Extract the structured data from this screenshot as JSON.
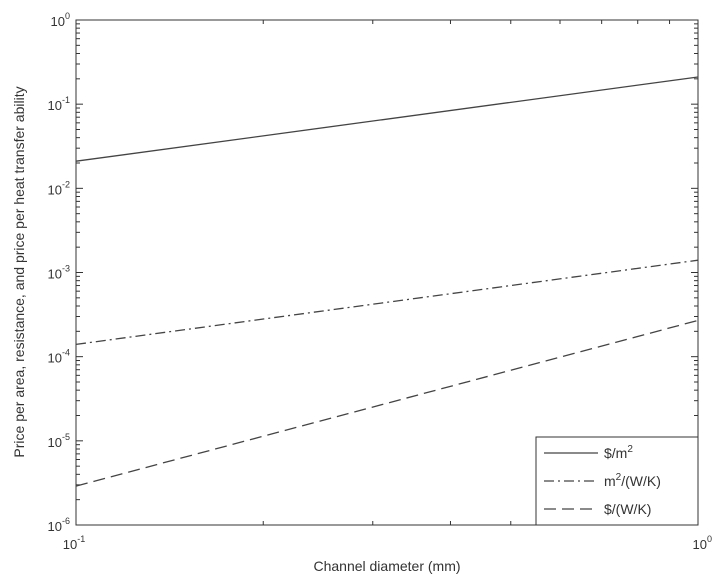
{
  "chart_data": {
    "type": "line",
    "xlabel": "Channel diameter (mm)",
    "ylabel": "Price per area, resistance, and price per heat transfer ability",
    "x_scale": "log",
    "y_scale": "log",
    "xlim": [
      0.1,
      1
    ],
    "ylim": [
      1e-06,
      1
    ],
    "x_ticks": [
      {
        "value": 0.1,
        "base": "10",
        "exp": "-1"
      },
      {
        "value": 1,
        "base": "10",
        "exp": "0"
      }
    ],
    "y_ticks": [
      {
        "value": 1e-06,
        "base": "10",
        "exp": "-6"
      },
      {
        "value": 1e-05,
        "base": "10",
        "exp": "-5"
      },
      {
        "value": 0.0001,
        "base": "10",
        "exp": "-4"
      },
      {
        "value": 0.001,
        "base": "10",
        "exp": "-3"
      },
      {
        "value": 0.01,
        "base": "10",
        "exp": "-2"
      },
      {
        "value": 0.1,
        "base": "10",
        "exp": "-1"
      },
      {
        "value": 1,
        "base": "10",
        "exp": "0"
      }
    ],
    "grid": false,
    "legend_position": "bottom-right",
    "series": [
      {
        "name_main": "$/m",
        "name_sup": "2",
        "name_after": "",
        "name_pre": "",
        "style": "solid",
        "x": [
          0.1,
          1
        ],
        "y": [
          0.021,
          0.21
        ]
      },
      {
        "name_pre": "m",
        "name_sup": "2",
        "name_after": "/(W/K)",
        "name_main": "",
        "style": "dashdot",
        "x": [
          0.1,
          1
        ],
        "y": [
          0.00014,
          0.0014
        ]
      },
      {
        "name_main": "$/(W/K)",
        "name_sup": "",
        "name_after": "",
        "name_pre": "",
        "style": "dashed",
        "x": [
          0.1,
          1
        ],
        "y": [
          2.9e-06,
          0.00027
        ]
      }
    ]
  }
}
